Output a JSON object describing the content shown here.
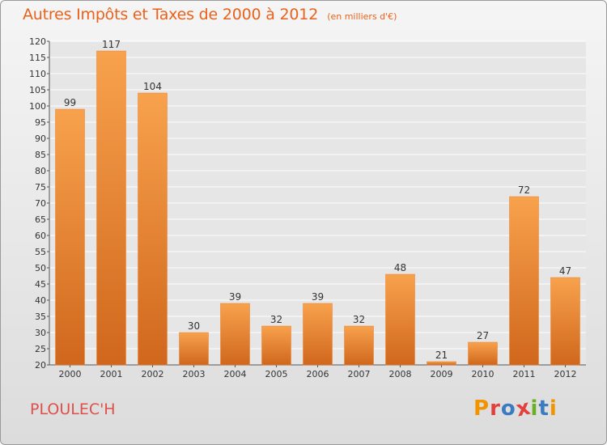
{
  "header": {
    "title": "Autres Impôts et Taxes de 2000 à 2012",
    "unit": "(en milliers d'€)"
  },
  "footer": {
    "commune": "PLOULEC'H",
    "logo": "Proxiti",
    "logo_colors": [
      "#f29400",
      "#e2403c",
      "#3a7cc0",
      "#e2403c",
      "#6ab023",
      "#3a7cc0",
      "#f29400"
    ]
  },
  "chart_data": {
    "type": "bar",
    "title": "Autres Impôts et Taxes de 2000 à 2012",
    "subtitle": "(en milliers d'€)",
    "xlabel": "",
    "ylabel": "",
    "categories": [
      "2000",
      "2001",
      "2002",
      "2003",
      "2004",
      "2005",
      "2006",
      "2007",
      "2008",
      "2009",
      "2010",
      "2011",
      "2012"
    ],
    "values": [
      99,
      117,
      104,
      30,
      39,
      32,
      39,
      32,
      48,
      21,
      27,
      72,
      47
    ],
    "ylim": [
      20,
      120
    ],
    "ytick_step": 5,
    "grid": true,
    "bar_color": "#ea7d2a",
    "bar_color_light": "#f8a24d",
    "bar_color_dark": "#d0671c"
  }
}
